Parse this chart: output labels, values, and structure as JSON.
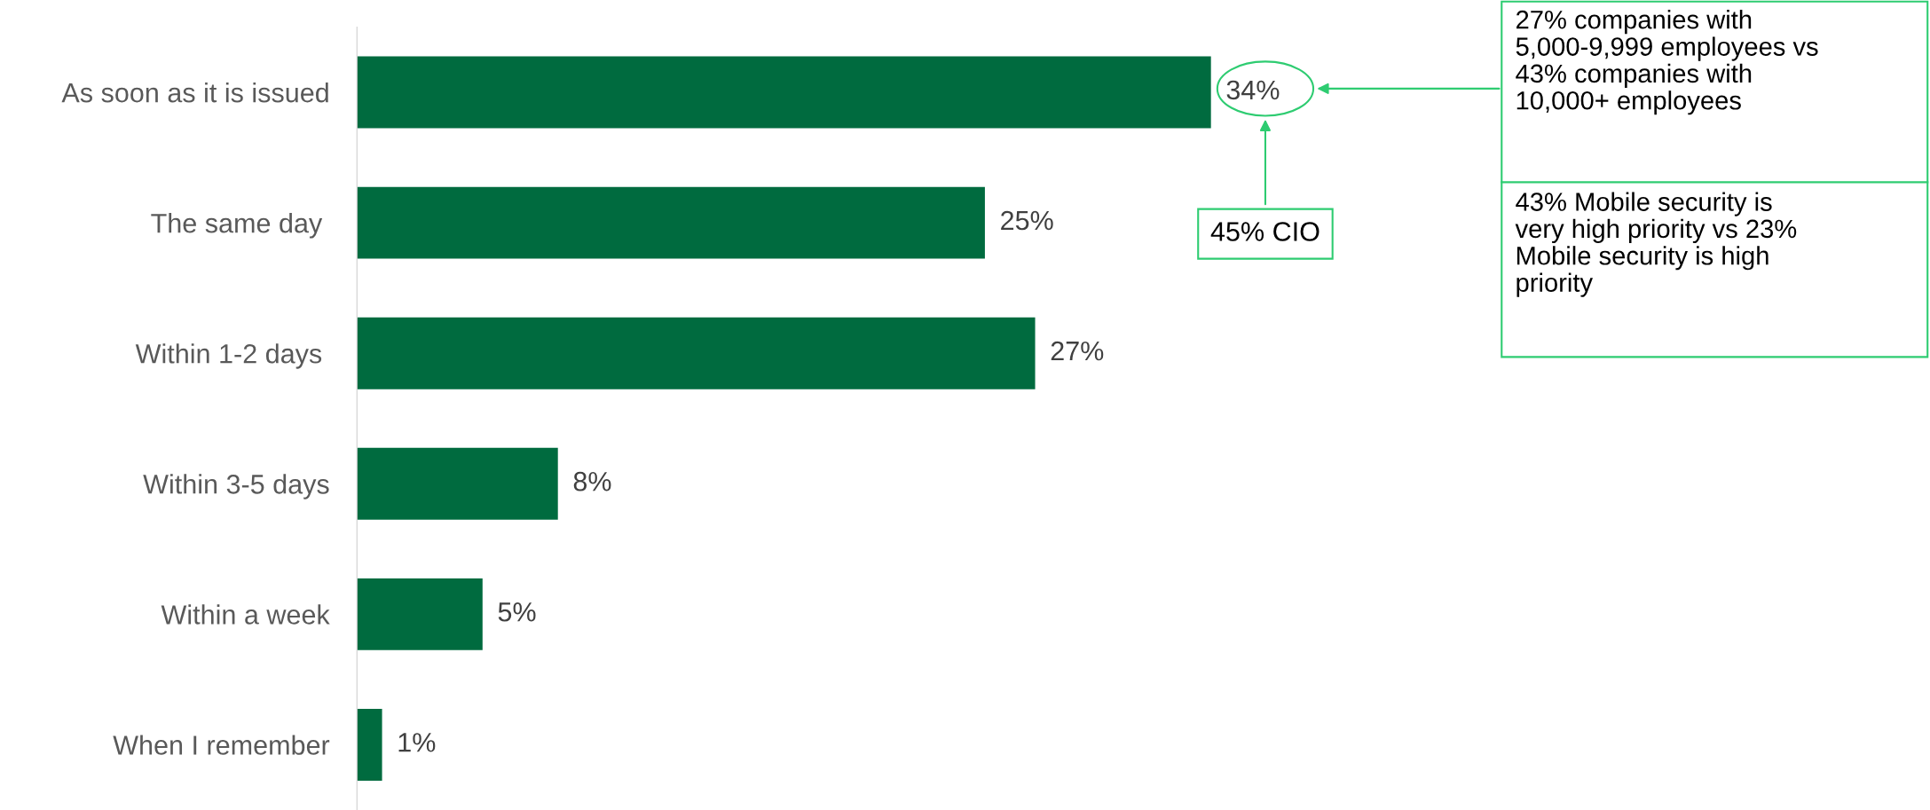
{
  "chart_data": {
    "type": "bar",
    "orientation": "horizontal",
    "categories": [
      "As soon as it is issued",
      "The same day ",
      "Within 1-2 days ",
      "Within 3-5 days",
      "Within a week",
      "When I remember"
    ],
    "values": [
      34,
      25,
      27,
      8,
      5,
      1
    ],
    "color": "#006b3f",
    "value_labels": [
      "34%",
      "25%",
      "27%",
      "8%",
      "5%",
      "1%"
    ],
    "grid": false,
    "tick_labels": "y",
    "annotations": [
      "45% CIO",
      "27% companies with\n5,000-9,999 employees vs\n43% companies with\n10,000+ employees",
      "43% Mobile security is\nvery high priority vs 23%\nMobile security is high\npriority"
    ]
  }
}
